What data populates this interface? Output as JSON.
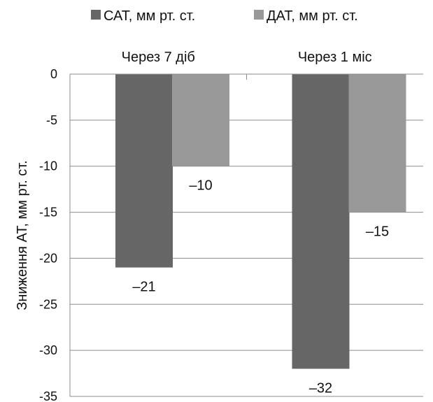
{
  "chart_data": {
    "type": "bar",
    "title": "",
    "categories": [
      "Через 7 діб",
      "Через 1 міс"
    ],
    "series": [
      {
        "name": "САТ, мм рт. ст.",
        "values": [
          -21,
          -32
        ],
        "labels": [
          "–21",
          "–32"
        ],
        "color": "#666666"
      },
      {
        "name": "ДАТ, мм рт. ст.",
        "values": [
          -10,
          -15
        ],
        "labels": [
          "–10",
          "–15"
        ],
        "color": "#999999"
      }
    ],
    "xlabel": "",
    "ylabel": "Зниження АТ, мм рт. ст.",
    "ylim": [
      -35,
      0
    ],
    "yticks": [
      0,
      -5,
      -10,
      -15,
      -20,
      -25,
      -30,
      -35
    ],
    "yticks_labels": [
      "0",
      "-5",
      "-10",
      "-15",
      "-20",
      "-25",
      "-30",
      "-35"
    ],
    "grid": true,
    "legend_position": "top",
    "category_axis_position": "top"
  }
}
